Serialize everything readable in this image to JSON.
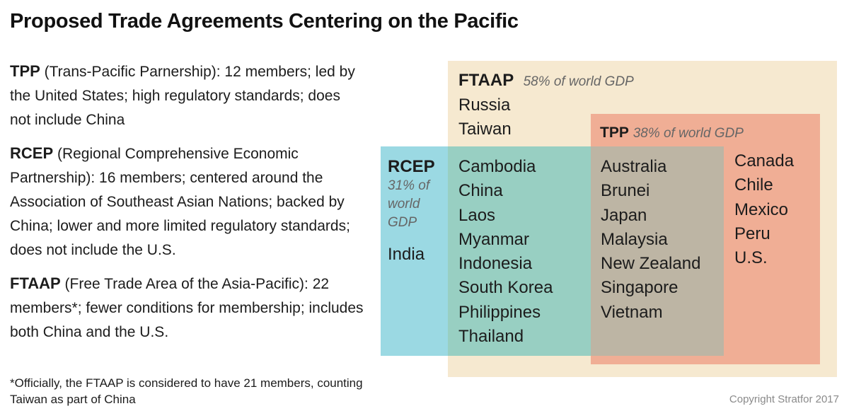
{
  "title": "Proposed Trade Agreements Centering on the Pacific",
  "descriptions": [
    {
      "abbr": "TPP",
      "text": " (Trans-Pacific Parnership): 12 members; led by the United States; high regulatory standards; does not include China"
    },
    {
      "abbr": "RCEP",
      "text": " (Regional Comprehensive Economic Partnership): 16 members; centered around the Association of Southeast Asian Nations; backed by China; lower and more limited regulatory standards; does not include the U.S."
    },
    {
      "abbr": "FTAAP",
      "text": " (Free Trade Area of the Asia-Pacific): 22 members*; fewer conditions for membership; includes both China and the U.S."
    }
  ],
  "footnote": "*Officially, the FTAAP is considered to have 21 members, counting Taiwan as part of China",
  "copyright": "Copyright Stratfor 2017",
  "diagram": {
    "colors": {
      "ftaap": "#f6e9d0",
      "tpp": "#f0ae95",
      "rcep": "#9bd9e3",
      "rcep_ftaap_overlap": "#98cfc2",
      "all_overlap": "#bdb5a4"
    },
    "ftaap": {
      "name": "FTAAP",
      "share": "58% of world GDP"
    },
    "tpp": {
      "name": "TPP",
      "share": "38% of world GDP"
    },
    "rcep": {
      "name": "RCEP",
      "share_line1": "31% of",
      "share_line2": "world",
      "share_line3": "GDP"
    },
    "ftaap_only": [
      "Russia",
      "Taiwan"
    ],
    "rcep_only": [
      "India"
    ],
    "rcep_ftaap": [
      "Cambodia",
      "China",
      "Laos",
      "Myanmar",
      "Indonesia",
      "South Korea",
      "Philippines",
      "Thailand"
    ],
    "all_three": [
      "Australia",
      "Brunei",
      "Japan",
      "Malaysia",
      "New Zealand",
      "Singapore",
      "Vietnam"
    ],
    "tpp_ftaap": [
      "Canada",
      "Chile",
      "Mexico",
      "Peru",
      "U.S."
    ]
  }
}
